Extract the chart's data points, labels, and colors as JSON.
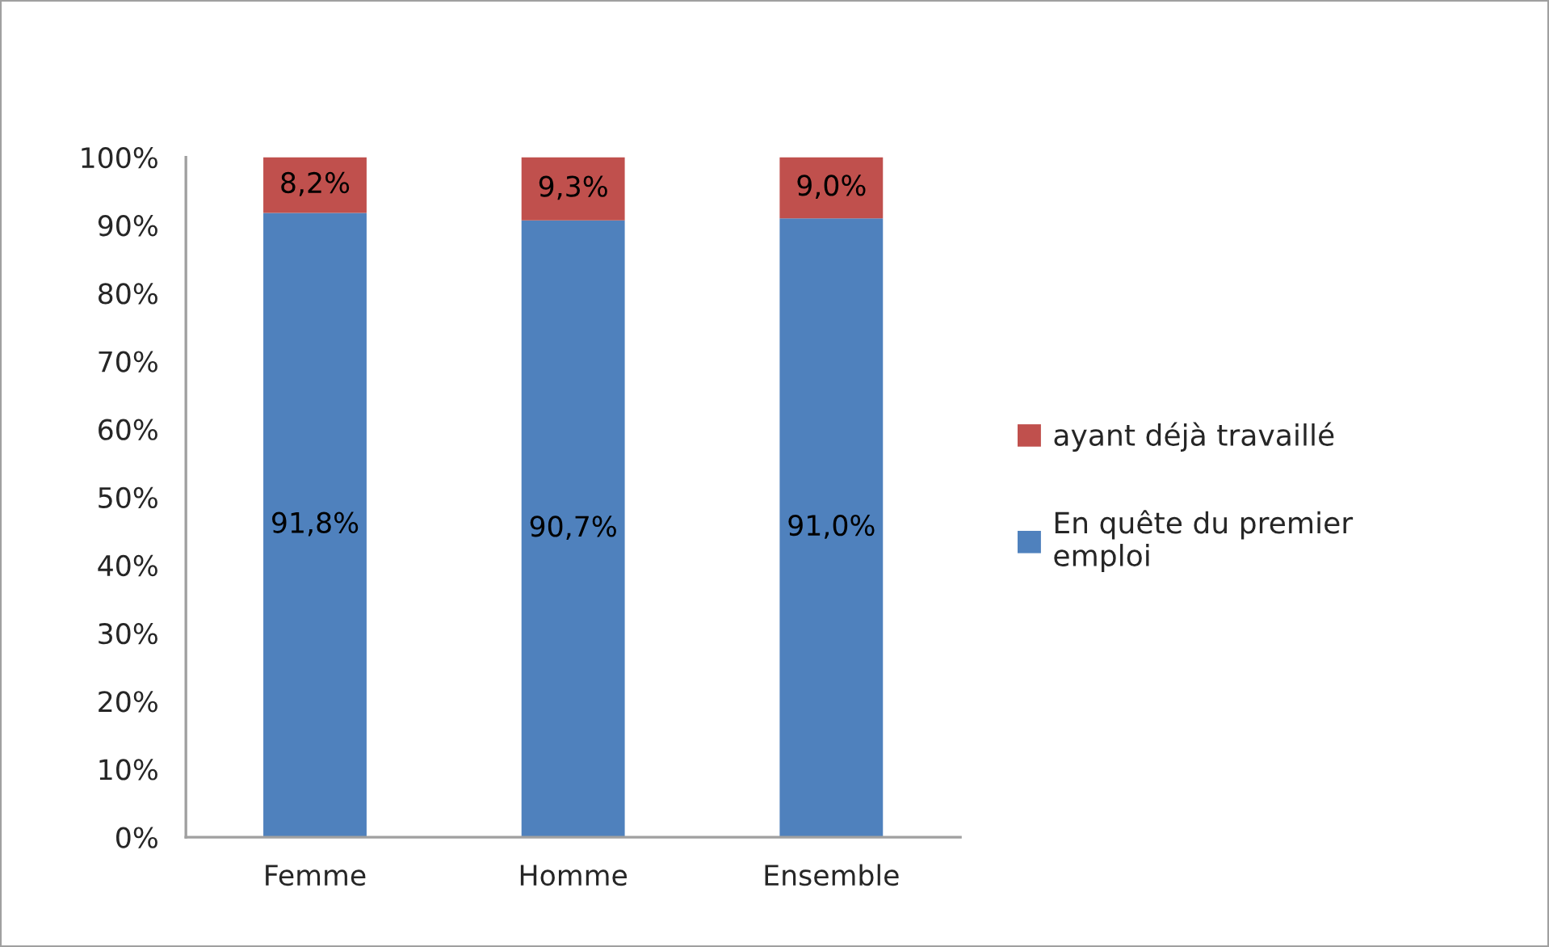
{
  "chart_data": {
    "type": "bar",
    "stacked": true,
    "categories": [
      "Femme",
      "Homme",
      "Ensemble"
    ],
    "series": [
      {
        "name": "En quête du premier emploi",
        "color": "#4f81bd",
        "values": [
          91.8,
          90.7,
          91.0
        ],
        "value_labels": [
          "91,8%",
          "90,7%",
          "91,0%"
        ]
      },
      {
        "name": "ayant déjà travaillé",
        "color": "#c0504d",
        "values": [
          8.2,
          9.3,
          9.0
        ],
        "value_labels": [
          "8,2%",
          "9,3%",
          "9,0%"
        ]
      }
    ],
    "ylim": [
      0,
      100
    ],
    "yticks": [
      {
        "value": 0,
        "label": "0%"
      },
      {
        "value": 10,
        "label": "10%"
      },
      {
        "value": 20,
        "label": "20%"
      },
      {
        "value": 30,
        "label": "30%"
      },
      {
        "value": 40,
        "label": "40%"
      },
      {
        "value": 50,
        "label": "50%"
      },
      {
        "value": 60,
        "label": "60%"
      },
      {
        "value": 70,
        "label": "70%"
      },
      {
        "value": 80,
        "label": "80%"
      },
      {
        "value": 90,
        "label": "90%"
      },
      {
        "value": 100,
        "label": "100%"
      }
    ],
    "legend": "right"
  }
}
